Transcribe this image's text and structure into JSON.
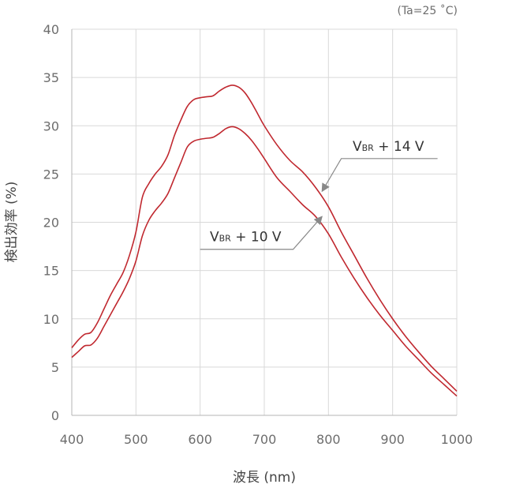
{
  "chart_data": {
    "type": "line",
    "condition": "(Ta=25 ˚C)",
    "xlabel": "波長 (nm)",
    "ylabel": "検出効率 (%)",
    "xlim": [
      400,
      1000
    ],
    "ylim": [
      0,
      40
    ],
    "xticks": [
      400,
      500,
      600,
      700,
      800,
      900,
      1000
    ],
    "yticks": [
      0,
      5,
      10,
      15,
      20,
      25,
      30,
      35,
      40
    ],
    "grid": true,
    "colors": {
      "line": "#c0282f",
      "grid": "#d9d9d9",
      "axis": "#b5b5b5",
      "tick_text": "#6d6d6d",
      "annotation": "#888888"
    },
    "series": [
      {
        "name": "VBR + 14 V",
        "label_main": "V",
        "label_sub": "BR",
        "label_rest": " + 14 V",
        "points": [
          [
            400,
            7.0
          ],
          [
            410,
            7.8
          ],
          [
            420,
            8.4
          ],
          [
            430,
            8.6
          ],
          [
            440,
            9.6
          ],
          [
            450,
            11.0
          ],
          [
            460,
            12.4
          ],
          [
            470,
            13.6
          ],
          [
            480,
            14.8
          ],
          [
            490,
            16.6
          ],
          [
            500,
            19.0
          ],
          [
            510,
            22.6
          ],
          [
            520,
            24.0
          ],
          [
            530,
            25.0
          ],
          [
            540,
            25.8
          ],
          [
            550,
            27.0
          ],
          [
            560,
            29.0
          ],
          [
            570,
            30.6
          ],
          [
            580,
            32.0
          ],
          [
            590,
            32.7
          ],
          [
            600,
            32.9
          ],
          [
            610,
            33.0
          ],
          [
            620,
            33.1
          ],
          [
            630,
            33.6
          ],
          [
            640,
            34.0
          ],
          [
            650,
            34.2
          ],
          [
            660,
            34.0
          ],
          [
            670,
            33.4
          ],
          [
            680,
            32.4
          ],
          [
            690,
            31.2
          ],
          [
            700,
            30.0
          ],
          [
            720,
            28.0
          ],
          [
            740,
            26.4
          ],
          [
            760,
            25.2
          ],
          [
            780,
            23.6
          ],
          [
            800,
            21.6
          ],
          [
            820,
            19.0
          ],
          [
            840,
            16.6
          ],
          [
            860,
            14.2
          ],
          [
            880,
            12.0
          ],
          [
            900,
            10.0
          ],
          [
            920,
            8.2
          ],
          [
            940,
            6.6
          ],
          [
            960,
            5.1
          ],
          [
            980,
            3.8
          ],
          [
            1000,
            2.5
          ]
        ]
      },
      {
        "name": "VBR + 10 V",
        "label_main": "V",
        "label_sub": "BR",
        "label_rest": " + 10 V",
        "points": [
          [
            400,
            6.0
          ],
          [
            410,
            6.6
          ],
          [
            420,
            7.2
          ],
          [
            430,
            7.3
          ],
          [
            440,
            8.0
          ],
          [
            450,
            9.2
          ],
          [
            460,
            10.4
          ],
          [
            470,
            11.6
          ],
          [
            480,
            12.8
          ],
          [
            490,
            14.2
          ],
          [
            500,
            16.0
          ],
          [
            510,
            18.6
          ],
          [
            520,
            20.2
          ],
          [
            530,
            21.2
          ],
          [
            540,
            22.0
          ],
          [
            550,
            23.0
          ],
          [
            560,
            24.6
          ],
          [
            570,
            26.2
          ],
          [
            580,
            27.8
          ],
          [
            590,
            28.4
          ],
          [
            600,
            28.6
          ],
          [
            610,
            28.7
          ],
          [
            620,
            28.8
          ],
          [
            630,
            29.2
          ],
          [
            640,
            29.7
          ],
          [
            650,
            29.9
          ],
          [
            660,
            29.7
          ],
          [
            670,
            29.2
          ],
          [
            680,
            28.5
          ],
          [
            690,
            27.6
          ],
          [
            700,
            26.6
          ],
          [
            720,
            24.6
          ],
          [
            740,
            23.2
          ],
          [
            760,
            21.8
          ],
          [
            780,
            20.6
          ],
          [
            800,
            18.8
          ],
          [
            820,
            16.4
          ],
          [
            840,
            14.2
          ],
          [
            860,
            12.2
          ],
          [
            880,
            10.4
          ],
          [
            900,
            8.8
          ],
          [
            920,
            7.2
          ],
          [
            940,
            5.8
          ],
          [
            960,
            4.4
          ],
          [
            980,
            3.2
          ],
          [
            1000,
            2.0
          ]
        ]
      }
    ],
    "annotations": [
      {
        "series": 0,
        "target": [
          790,
          23.2
        ],
        "elbow_y": 26.6,
        "elbow_x": 820,
        "end_x": 970
      },
      {
        "series": 1,
        "target": [
          790,
          20.6
        ],
        "elbow_y": 17.2,
        "elbow_x": 745,
        "end_x": 600
      }
    ]
  }
}
